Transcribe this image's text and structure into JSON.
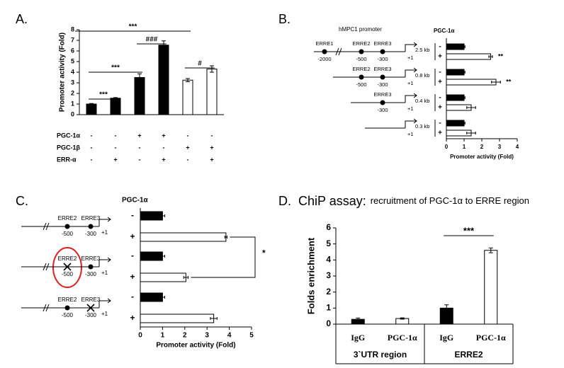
{
  "chart_data": [
    {
      "type": "bar",
      "panel": "A.",
      "ylabel": "Promoter activity (Fold)",
      "values": [
        1.0,
        1.55,
        3.5,
        6.55,
        3.25,
        4.3
      ],
      "errors": [
        0.05,
        0.06,
        0.35,
        0.4,
        0.15,
        0.3
      ],
      "colors": [
        "#000000",
        "#000000",
        "#000000",
        "#000000",
        "#ffffff",
        "#ffffff"
      ],
      "ylim": [
        0,
        8
      ],
      "yticks": [
        0,
        1,
        2,
        3,
        4,
        5,
        6,
        7,
        8
      ],
      "conditions": [
        {
          "name": "PGC-1α",
          "signs": [
            "-",
            "-",
            "+",
            "+",
            "-",
            "-"
          ]
        },
        {
          "name": "PGC-1β",
          "signs": [
            "-",
            "-",
            "-",
            "-",
            "+",
            "+"
          ]
        },
        {
          "name": "ERR-α",
          "signs": [
            "-",
            "+",
            "-",
            "+",
            "-",
            "+"
          ]
        }
      ],
      "annotations": [
        "***",
        "***",
        "###",
        "***",
        "#"
      ]
    },
    {
      "type": "hbar",
      "panel": "B.",
      "header": "PGC-1α",
      "xlabel": "Promoter activity (Fold)",
      "promoter": "hMPC1 promoter",
      "constructs": [
        {
          "size": "2.5 kb",
          "tss": "+1",
          "elements": [
            {
              "name": "ERRE1",
              "position": "-2000"
            },
            {
              "name": "ERRE2",
              "position": "-500"
            },
            {
              "name": "ERRE3",
              "position": "-300"
            }
          ]
        },
        {
          "size": "0.8 kb",
          "tss": "+1",
          "elements": [
            {
              "name": "ERRE2",
              "position": "-500"
            },
            {
              "name": "ERRE3",
              "position": "-300"
            }
          ]
        },
        {
          "size": "0.4 kb",
          "tss": "+1",
          "elements": [
            {
              "name": "ERRE3",
              "position": "-300"
            }
          ]
        },
        {
          "size": "0.3 kb",
          "tss": "+1",
          "elements": []
        }
      ],
      "series": [
        {
          "name": "-",
          "color": "#000000",
          "values": [
            1,
            1,
            1,
            1
          ],
          "errors": [
            0.05,
            0.05,
            0.05,
            0.05
          ]
        },
        {
          "name": "+",
          "color": "#ffffff",
          "values": [
            2.5,
            2.8,
            1.4,
            1.4
          ],
          "errors": [
            0.1,
            0.25,
            0.25,
            0.25
          ]
        }
      ],
      "xlim": [
        0,
        4
      ],
      "xticks": [
        0,
        1,
        2,
        3,
        4
      ],
      "annotations": [
        "**",
        "**"
      ]
    },
    {
      "type": "hbar",
      "panel": "C.",
      "header": "PGC-1α",
      "xlabel": "Promoter activity (Fold)",
      "constructs": [
        {
          "tss": "+1",
          "elements": [
            {
              "name": "ERRE2",
              "position": "-500",
              "mutated": false
            },
            {
              "name": "ERRE3",
              "position": "-300",
              "mutated": false
            }
          ]
        },
        {
          "tss": "+1",
          "elements": [
            {
              "name": "ERRE2",
              "position": "-500",
              "mutated": true
            },
            {
              "name": "ERRE3",
              "position": "-300",
              "mutated": false
            }
          ]
        },
        {
          "tss": "+1",
          "elements": [
            {
              "name": "ERRE2",
              "position": "-500",
              "mutated": false
            },
            {
              "name": "ERRE3",
              "position": "-300",
              "mutated": true
            }
          ]
        }
      ],
      "series": [
        {
          "name": "-",
          "color": "#000000",
          "values": [
            1,
            1,
            1
          ],
          "errors": [
            0.1,
            0.1,
            0.1
          ]
        },
        {
          "name": "+",
          "color": "#ffffff",
          "values": [
            3.85,
            2.05,
            3.3
          ],
          "errors": [
            0.05,
            0.1,
            0.15
          ]
        }
      ],
      "xlim": [
        0,
        5
      ],
      "xticks": [
        0,
        1,
        2,
        3,
        4,
        5
      ],
      "annotations": [
        "*"
      ]
    },
    {
      "type": "bar",
      "panel": "D.",
      "title": "ChiP assay:",
      "subtitle": "recruitment of PGC-1α to ERRE region",
      "ylabel": "Folds enrichment",
      "categories": [
        "IgG",
        "PGC-1α",
        "IgG",
        "PGC-1α"
      ],
      "groups": [
        "3`UTR region",
        "ERRE2"
      ],
      "values": [
        0.3,
        0.35,
        1.0,
        4.6
      ],
      "errors": [
        0.08,
        0.04,
        0.2,
        0.15
      ],
      "colors": [
        "#000000",
        "#ffffff",
        "#000000",
        "#ffffff"
      ],
      "ylim": [
        0,
        6
      ],
      "yticks": [
        0,
        1,
        2,
        3,
        4,
        5,
        6
      ],
      "annotations": [
        "***"
      ]
    }
  ]
}
